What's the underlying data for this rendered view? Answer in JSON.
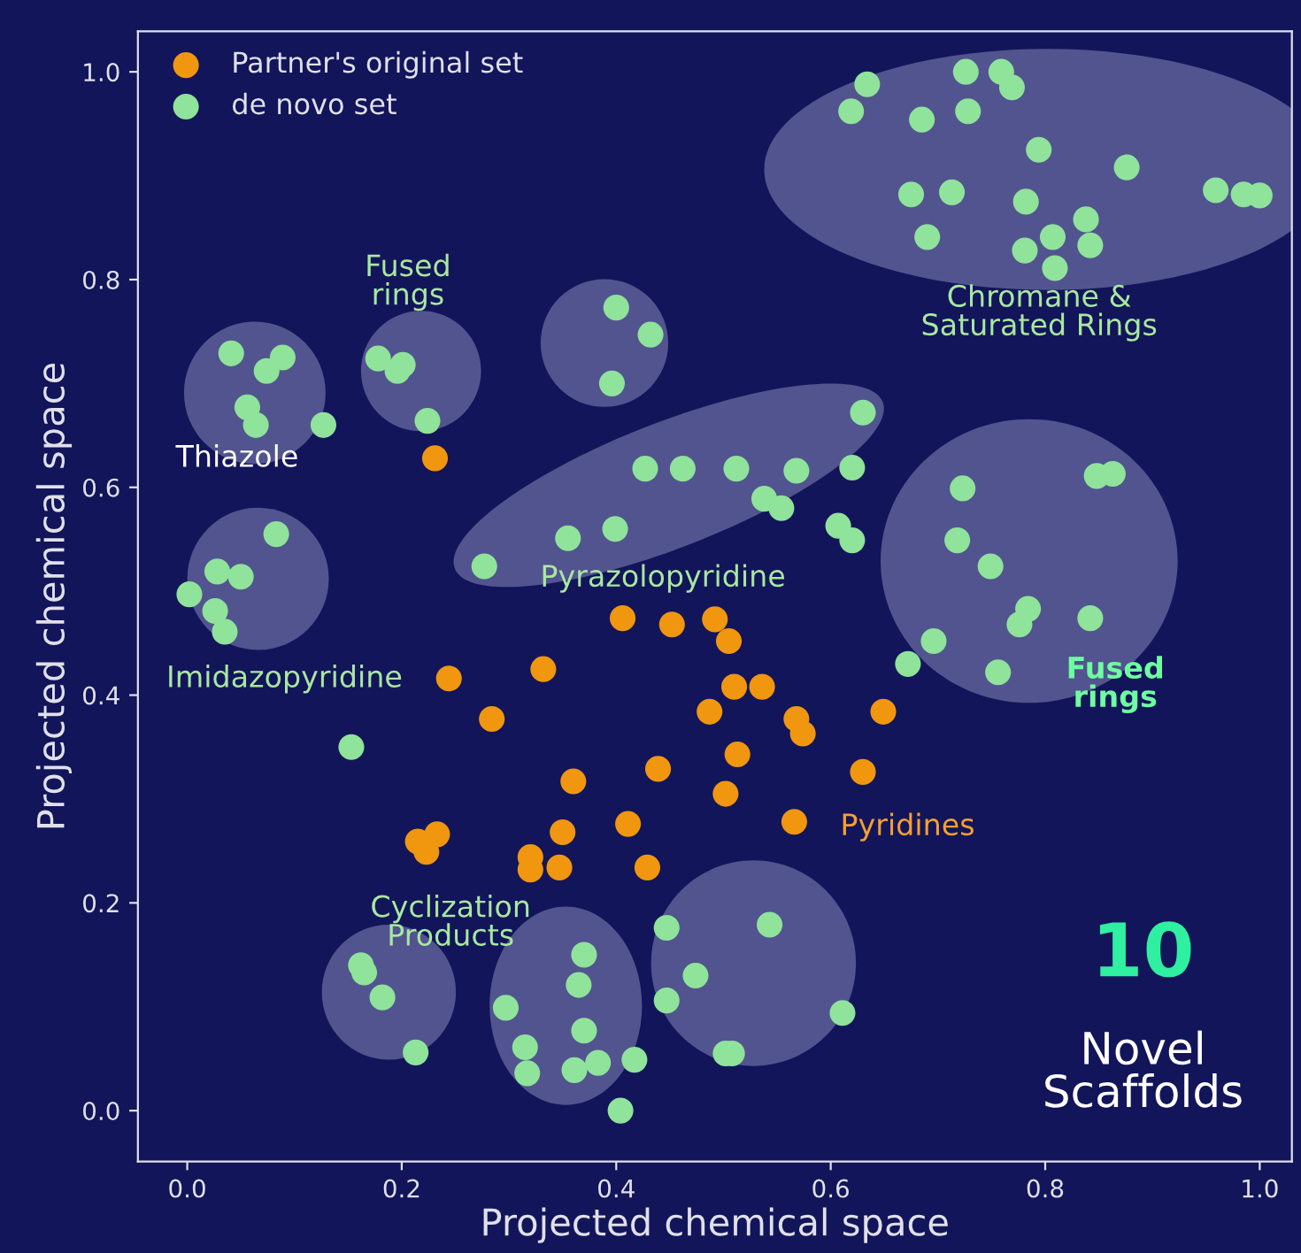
{
  "chart_data": {
    "type": "scatter",
    "xlabel": "Projected chemical space",
    "ylabel": "Projected chemical space",
    "xlim": [
      -0.046,
      1.03
    ],
    "ylim": [
      -0.049,
      1.039
    ],
    "xticks": [
      {
        "value": 0,
        "label": "0.0"
      },
      0.2,
      0.4,
      0.6,
      0.8,
      {
        "value": 1,
        "label": "1.0"
      }
    ],
    "yticks": [
      {
        "value": 0,
        "label": "0.0"
      },
      0.2,
      0.4,
      0.6,
      0.8,
      {
        "value": 1,
        "label": "1.0"
      }
    ],
    "grid": false,
    "legend": "top left",
    "marker": "circle",
    "series": [
      {
        "name": "Partner's original set",
        "color": "#f0960f",
        "x": [
          0.231,
          0.244,
          0.332,
          0.284,
          0.406,
          0.452,
          0.492,
          0.505,
          0.51,
          0.536,
          0.487,
          0.568,
          0.574,
          0.649,
          0.63,
          0.513,
          0.439,
          0.36,
          0.502,
          0.411,
          0.566,
          0.215,
          0.233,
          0.223,
          0.32,
          0.32,
          0.347,
          0.35,
          0.429
        ],
        "values": [
          0.628,
          0.416,
          0.425,
          0.377,
          0.474,
          0.468,
          0.473,
          0.452,
          0.408,
          0.408,
          0.384,
          0.377,
          0.363,
          0.384,
          0.326,
          0.343,
          0.329,
          0.317,
          0.305,
          0.276,
          0.278,
          0.259,
          0.266,
          0.249,
          0.244,
          0.232,
          0.234,
          0.268,
          0.234
        ]
      },
      {
        "name": "de novo set",
        "color": "#8fe39a",
        "x": [
          0.619,
          0.634,
          0.726,
          0.759,
          0.769,
          0.728,
          0.685,
          0.794,
          0.876,
          0.675,
          0.713,
          0.782,
          0.838,
          0.842,
          0.807,
          0.781,
          0.809,
          0.69,
          0.959,
          0.985,
          1.0,
          0.041,
          0.074,
          0.089,
          0.056,
          0.064,
          0.127,
          0.178,
          0.201,
          0.196,
          0.224,
          0.4,
          0.432,
          0.396,
          0.427,
          0.462,
          0.512,
          0.568,
          0.62,
          0.63,
          0.538,
          0.554,
          0.607,
          0.62,
          0.399,
          0.355,
          0.277,
          0.083,
          0.028,
          0.05,
          0.002,
          0.026,
          0.035,
          0.723,
          0.848,
          0.863,
          0.718,
          0.749,
          0.784,
          0.776,
          0.842,
          0.696,
          0.756,
          0.672,
          0.153,
          0.162,
          0.165,
          0.182,
          0.213,
          0.37,
          0.365,
          0.37,
          0.297,
          0.315,
          0.317,
          0.361,
          0.383,
          0.417,
          0.404,
          0.447,
          0.447,
          0.474,
          0.502,
          0.508,
          0.543,
          0.611
        ],
        "values": [
          0.962,
          0.988,
          1.0,
          1.0,
          0.985,
          0.962,
          0.954,
          0.925,
          0.908,
          0.882,
          0.884,
          0.875,
          0.858,
          0.833,
          0.841,
          0.828,
          0.811,
          0.841,
          0.886,
          0.882,
          0.881,
          0.729,
          0.712,
          0.725,
          0.677,
          0.66,
          0.66,
          0.724,
          0.718,
          0.712,
          0.664,
          0.773,
          0.747,
          0.7,
          0.618,
          0.618,
          0.618,
          0.616,
          0.619,
          0.672,
          0.589,
          0.58,
          0.563,
          0.549,
          0.56,
          0.551,
          0.524,
          0.555,
          0.519,
          0.514,
          0.497,
          0.481,
          0.461,
          0.599,
          0.611,
          0.613,
          0.549,
          0.524,
          0.483,
          0.468,
          0.474,
          0.452,
          0.422,
          0.43,
          0.35,
          0.14,
          0.133,
          0.109,
          0.056,
          0.15,
          0.121,
          0.077,
          0.099,
          0.061,
          0.036,
          0.039,
          0.046,
          0.049,
          0.0,
          0.176,
          0.106,
          0.13,
          0.055,
          0.055,
          0.179,
          0.094
        ]
      }
    ],
    "annotations": [
      "Fused\nrings",
      "Thiazole",
      "Imidazopyridine",
      "Pyrazolopyridine",
      "Chromane &\nSaturated Rings",
      "Fused\nrings",
      "Pyridines",
      "Cyclization\nProducts",
      "10",
      "Novel\nScaffolds"
    ]
  }
}
